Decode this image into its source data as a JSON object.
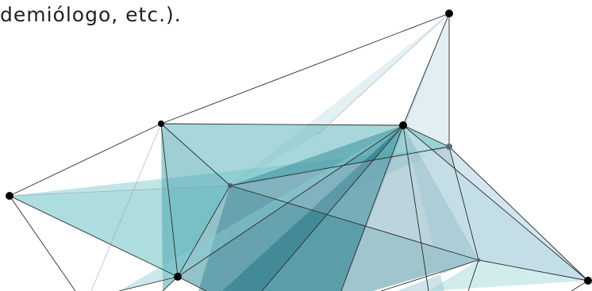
{
  "caption": {
    "text": "demiólogo, etc.)."
  },
  "graphic": {
    "icon": "polygon-network-illustration",
    "colors": {
      "teal_light": "#8ccfd2",
      "teal_mid": "#4fa7b0",
      "teal_dark": "#1f6f80",
      "pale_blue": "#c9e2ea",
      "line": "#2b2b2b",
      "node": "#000000",
      "node_grey": "#5a6a78"
    }
  }
}
